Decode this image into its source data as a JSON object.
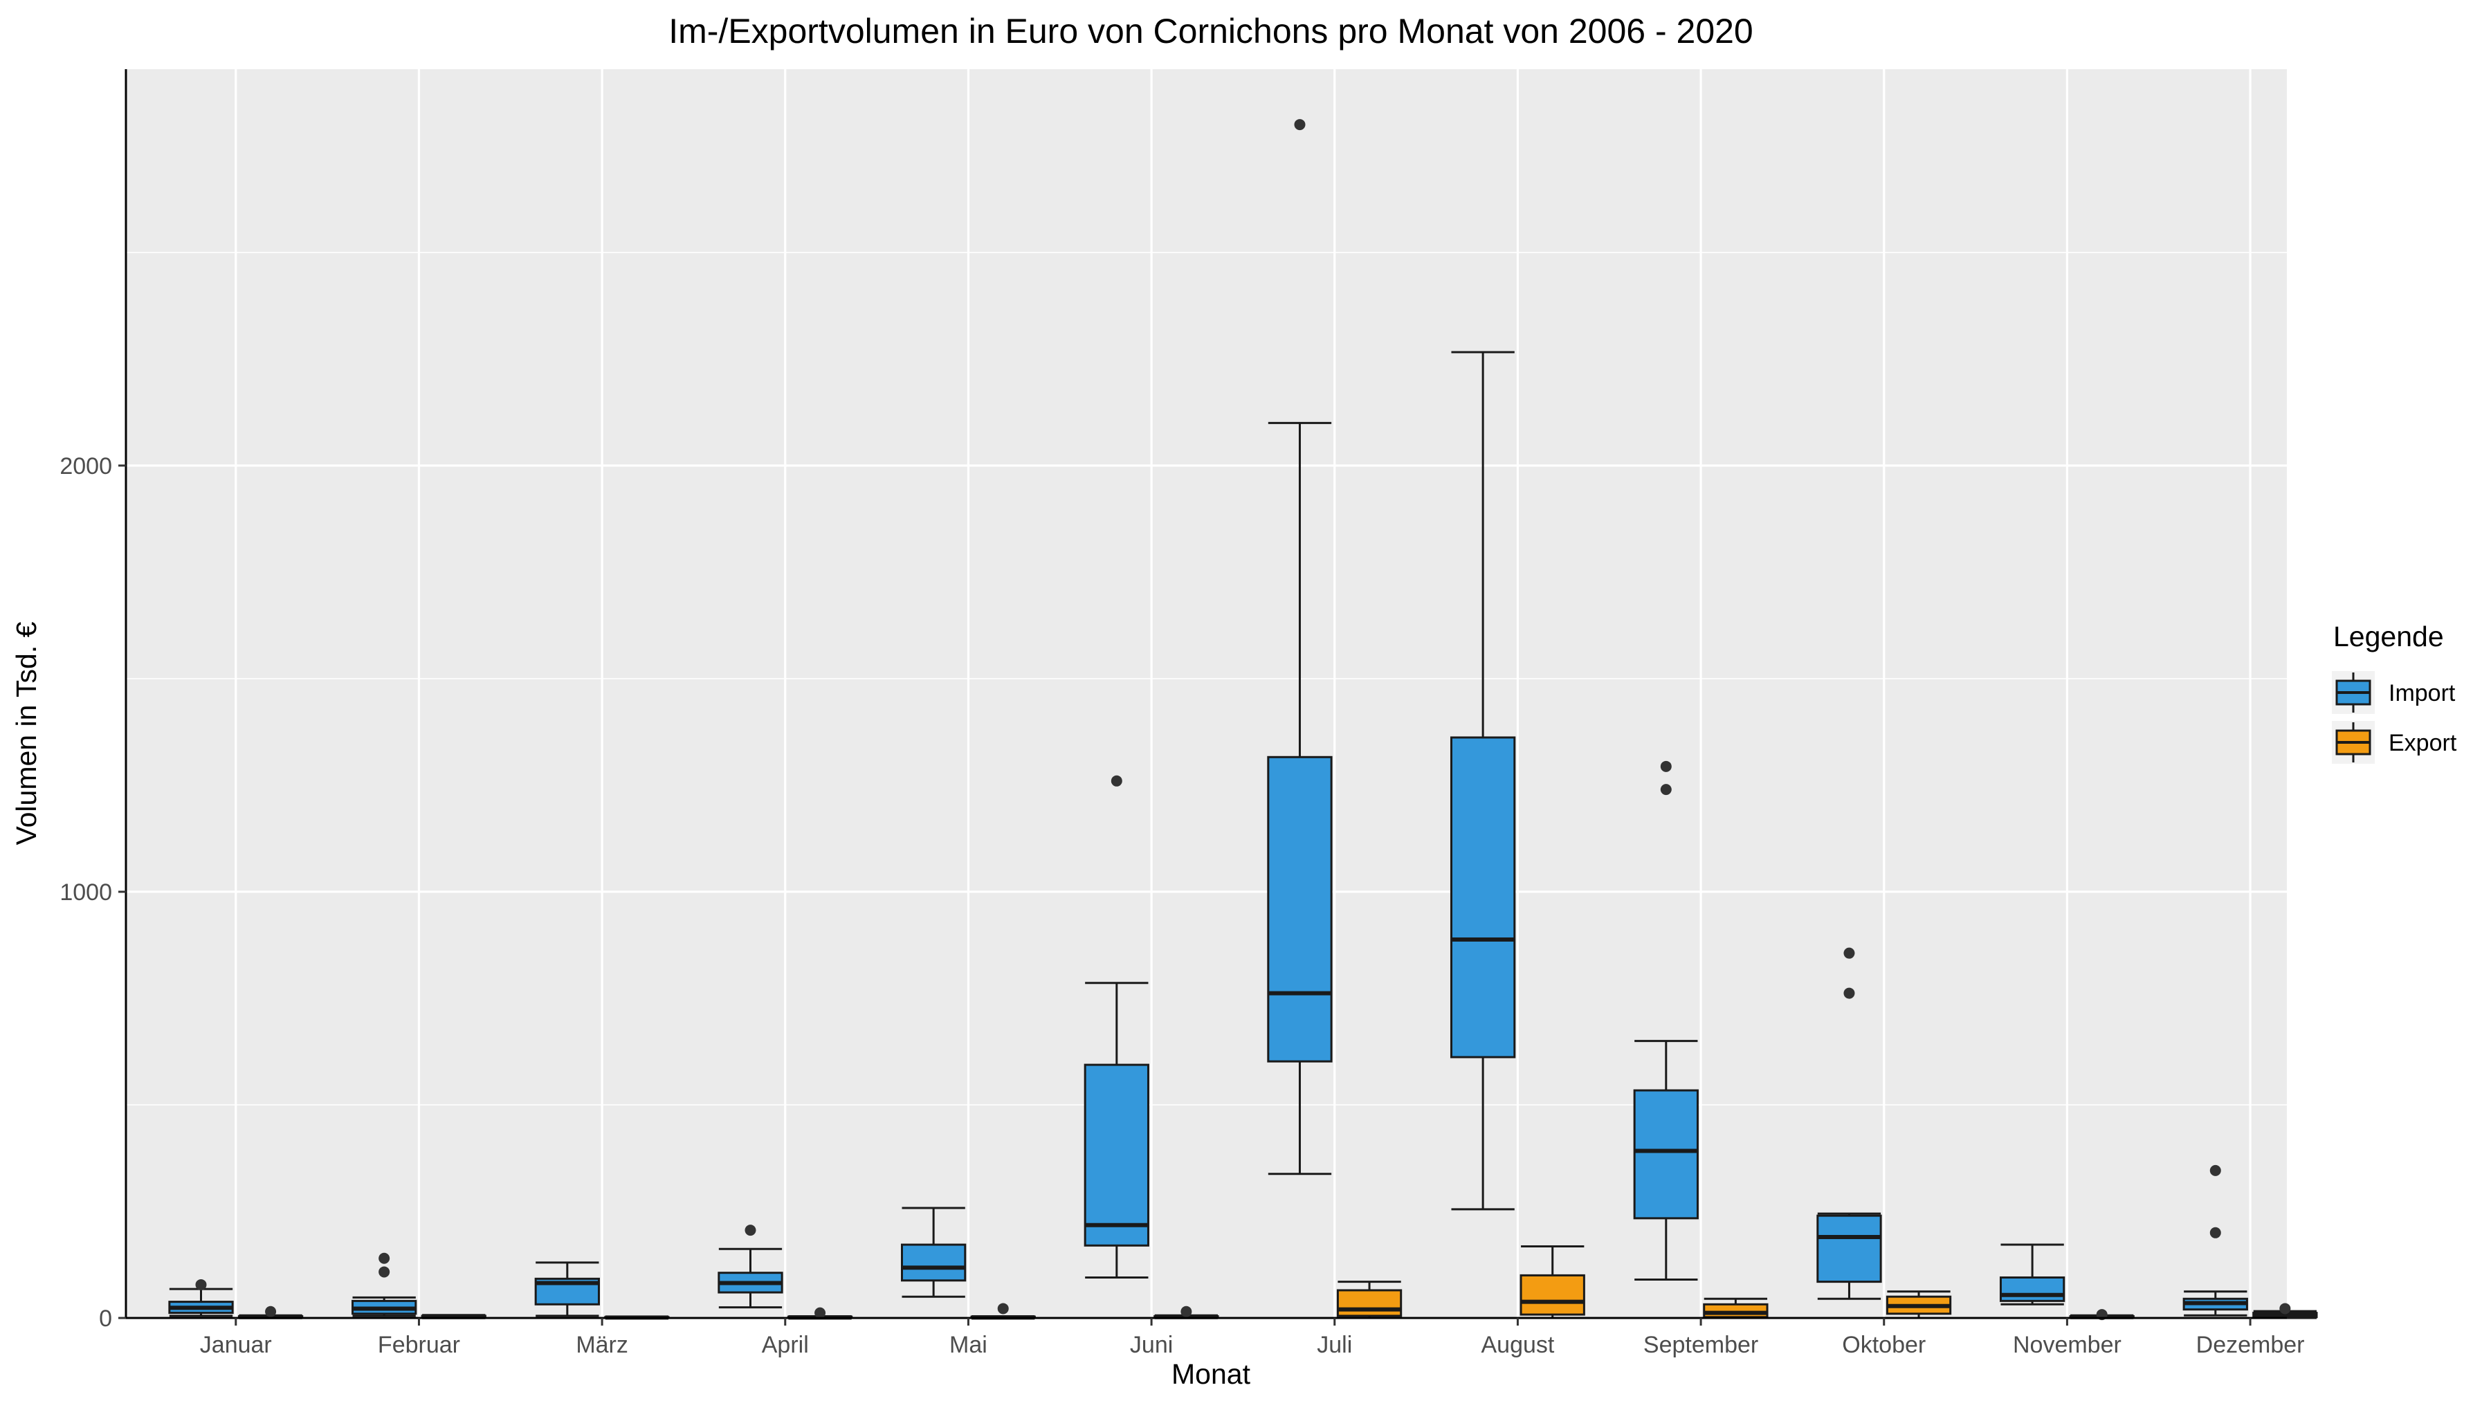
{
  "chart_data": {
    "type": "boxplot",
    "title": "Im-/Exportvolumen in Euro von Cornichons pro Monat von 2006 - 2020",
    "xlabel": "Monat",
    "ylabel": "Volumen in Tsd. €",
    "ylim": [
      0,
      2930
    ],
    "yticks": [
      0,
      1000,
      2000
    ],
    "ytick_labels": [
      "0",
      "1000",
      "2000"
    ],
    "grid": true,
    "legend_position": "right",
    "legend_title": "Legende",
    "colors": {
      "Import": "#3498db",
      "Export": "#f39c12"
    },
    "categories": [
      "Januar",
      "Februar",
      "März",
      "April",
      "Mai",
      "Juni",
      "Juli",
      "August",
      "September",
      "Oktober",
      "November",
      "Dezember"
    ],
    "series": [
      {
        "name": "Import",
        "boxes": [
          {
            "min": 5,
            "q1": 12,
            "median": 24,
            "q3": 38,
            "max": 68,
            "outliers": [
              78
            ]
          },
          {
            "min": 5,
            "q1": 10,
            "median": 22,
            "q3": 40,
            "max": 48,
            "outliers": [
              108,
              140
            ]
          },
          {
            "min": 5,
            "q1": 32,
            "median": 82,
            "q3": 92,
            "max": 130,
            "outliers": []
          },
          {
            "min": 25,
            "q1": 60,
            "median": 82,
            "q3": 106,
            "max": 162,
            "outliers": [
              206
            ]
          },
          {
            "min": 50,
            "q1": 88,
            "median": 118,
            "q3": 172,
            "max": 258,
            "outliers": []
          },
          {
            "min": 95,
            "q1": 170,
            "median": 218,
            "q3": 594,
            "max": 786,
            "outliers": [
              1260
            ]
          },
          {
            "min": 338,
            "q1": 602,
            "median": 762,
            "q3": 1316,
            "max": 2100,
            "outliers": [
              2800
            ]
          },
          {
            "min": 255,
            "q1": 612,
            "median": 888,
            "q3": 1362,
            "max": 2266,
            "outliers": []
          },
          {
            "min": 90,
            "q1": 234,
            "median": 392,
            "q3": 534,
            "max": 650,
            "outliers": [
              1240,
              1294
            ]
          },
          {
            "min": 45,
            "q1": 85,
            "median": 190,
            "q3": 240,
            "max": 245,
            "outliers": [
              762,
              856
            ]
          },
          {
            "min": 32,
            "q1": 40,
            "median": 54,
            "q3": 95,
            "max": 172,
            "outliers": []
          },
          {
            "min": 6,
            "q1": 20,
            "median": 35,
            "q3": 45,
            "max": 62,
            "outliers": [
              200,
              346
            ]
          }
        ]
      },
      {
        "name": "Export",
        "boxes": [
          {
            "min": 0,
            "q1": 0,
            "median": 2,
            "q3": 4,
            "max": 6,
            "outliers": [
              15
            ]
          },
          {
            "min": 0,
            "q1": 0,
            "median": 2,
            "q3": 5,
            "max": 7,
            "outliers": []
          },
          {
            "min": 0,
            "q1": 0,
            "median": 1,
            "q3": 2,
            "max": 3,
            "outliers": []
          },
          {
            "min": 0,
            "q1": 0,
            "median": 1,
            "q3": 3,
            "max": 4,
            "outliers": [
              12
            ]
          },
          {
            "min": 0,
            "q1": 0,
            "median": 1,
            "q3": 3,
            "max": 4,
            "outliers": [
              22
            ]
          },
          {
            "min": 0,
            "q1": 0,
            "median": 2,
            "q3": 4,
            "max": 6,
            "outliers": [
              15
            ]
          },
          {
            "min": 0,
            "q1": 5,
            "median": 20,
            "q3": 65,
            "max": 85,
            "outliers": []
          },
          {
            "min": 0,
            "q1": 8,
            "median": 38,
            "q3": 100,
            "max": 168,
            "outliers": []
          },
          {
            "min": 0,
            "q1": 2,
            "median": 12,
            "q3": 32,
            "max": 45,
            "outliers": []
          },
          {
            "min": 0,
            "q1": 10,
            "median": 28,
            "q3": 50,
            "max": 62,
            "outliers": []
          },
          {
            "min": 0,
            "q1": 0,
            "median": 2,
            "q3": 4,
            "max": 6,
            "outliers": [
              8
            ]
          },
          {
            "min": 0,
            "q1": 2,
            "median": 6,
            "q3": 12,
            "max": 16,
            "outliers": [
              22
            ]
          }
        ]
      }
    ]
  }
}
